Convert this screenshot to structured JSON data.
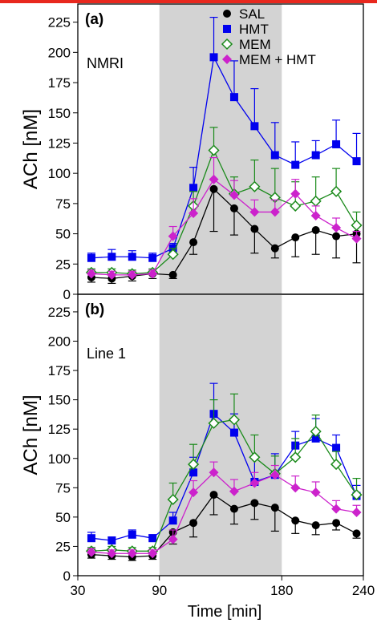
{
  "page": {
    "accent_color": "#e8281e"
  },
  "x_axis": {
    "label": "Time [min]",
    "ticks": [
      30,
      90,
      180,
      240
    ],
    "range": [
      30,
      240
    ]
  },
  "shaded_region": {
    "x_start": 90,
    "x_end": 180,
    "color": "#d3d3d3"
  },
  "chart_data": [
    {
      "type": "line",
      "panel_label": "(a)",
      "annotation": "NMRI",
      "ylabel": "ACh [nM]",
      "ylim": [
        0,
        240
      ],
      "y_ticks": [
        0,
        25,
        50,
        75,
        100,
        125,
        150,
        175,
        200,
        225
      ],
      "legend": {
        "position": "top-right"
      },
      "series": [
        {
          "name": "SAL",
          "color": "#000000",
          "marker": "circle",
          "x": [
            40,
            55,
            70,
            85,
            100,
            115,
            130,
            145,
            160,
            175,
            190,
            205,
            220,
            235
          ],
          "y": [
            14,
            13,
            15,
            17,
            16,
            43,
            87,
            71,
            54,
            38,
            47,
            53,
            48,
            50
          ],
          "err": [
            4,
            4,
            4,
            4,
            3,
            10,
            35,
            22,
            20,
            8,
            16,
            20,
            18,
            24
          ],
          "err_dir": "down"
        },
        {
          "name": "HMT",
          "color": "#0000ee",
          "marker": "square",
          "x": [
            40,
            55,
            70,
            85,
            100,
            115,
            130,
            145,
            160,
            175,
            190,
            205,
            220,
            235
          ],
          "y": [
            30,
            31,
            31,
            30,
            38,
            88,
            196,
            163,
            139,
            115,
            107,
            115,
            124,
            110
          ],
          "err": [
            4,
            6,
            5,
            4,
            4,
            17,
            33,
            30,
            31,
            27,
            19,
            12,
            20,
            23
          ],
          "err_dir": "up"
        },
        {
          "name": "MEM",
          "color": "#1a8a1a",
          "marker": "diamond-open",
          "x": [
            40,
            55,
            70,
            85,
            100,
            115,
            130,
            145,
            160,
            175,
            190,
            205,
            220,
            235
          ],
          "y": [
            18,
            18,
            17,
            18,
            33,
            73,
            119,
            83,
            89,
            80,
            73,
            77,
            85,
            57
          ],
          "err": [
            3,
            3,
            3,
            3,
            5,
            12,
            19,
            14,
            22,
            24,
            20,
            20,
            19,
            11
          ],
          "err_dir": "up"
        },
        {
          "name": "MEM +  HMT",
          "color": "#cc22cc",
          "marker": "diamond",
          "x": [
            40,
            55,
            70,
            85,
            100,
            115,
            130,
            145,
            160,
            175,
            190,
            205,
            220,
            235
          ],
          "y": [
            17,
            16,
            16,
            17,
            48,
            67,
            95,
            82,
            68,
            68,
            83,
            65,
            55,
            46
          ],
          "err": [
            3,
            3,
            3,
            3,
            8,
            12,
            18,
            12,
            10,
            10,
            12,
            8,
            8,
            6
          ],
          "err_dir": "up"
        }
      ]
    },
    {
      "type": "line",
      "panel_label": "(b)",
      "annotation": "Line 1",
      "ylabel": "ACh [nM]",
      "ylim": [
        0,
        240
      ],
      "y_ticks": [
        0,
        25,
        50,
        75,
        100,
        125,
        150,
        175,
        200,
        225
      ],
      "series": [
        {
          "name": "SAL",
          "color": "#000000",
          "marker": "circle",
          "x": [
            40,
            55,
            70,
            85,
            100,
            115,
            130,
            145,
            160,
            175,
            190,
            205,
            220,
            235
          ],
          "y": [
            18,
            17,
            16,
            17,
            37,
            45,
            69,
            57,
            62,
            58,
            47,
            43,
            45,
            36
          ],
          "err": [
            3,
            3,
            3,
            3,
            10,
            12,
            17,
            13,
            14,
            20,
            11,
            8,
            6,
            4
          ],
          "err_dir": "down"
        },
        {
          "name": "HMT",
          "color": "#0000ee",
          "marker": "square",
          "x": [
            40,
            55,
            70,
            85,
            100,
            115,
            130,
            145,
            160,
            175,
            190,
            205,
            220,
            235
          ],
          "y": [
            32,
            30,
            35,
            32,
            47,
            88,
            138,
            122,
            80,
            86,
            111,
            117,
            109,
            68
          ],
          "err": [
            5,
            3,
            4,
            3,
            7,
            13,
            26,
            16,
            20,
            18,
            12,
            17,
            11,
            9
          ],
          "err_dir": "up"
        },
        {
          "name": "MEM",
          "color": "#1a8a1a",
          "marker": "diamond-open",
          "x": [
            40,
            55,
            70,
            85,
            100,
            115,
            130,
            145,
            160,
            175,
            190,
            205,
            220,
            235
          ],
          "y": [
            21,
            22,
            21,
            21,
            65,
            95,
            130,
            133,
            101,
            87,
            101,
            123,
            95,
            69
          ],
          "err": [
            3,
            3,
            3,
            3,
            14,
            17,
            20,
            22,
            19,
            15,
            16,
            14,
            11,
            14
          ],
          "err_dir": "up"
        },
        {
          "name": "MEM +  HMT",
          "color": "#cc22cc",
          "marker": "diamond",
          "x": [
            40,
            55,
            70,
            85,
            100,
            115,
            130,
            145,
            160,
            175,
            190,
            205,
            220,
            235
          ],
          "y": [
            20,
            19,
            19,
            19,
            31,
            71,
            88,
            72,
            79,
            86,
            75,
            71,
            57,
            54
          ],
          "err": [
            3,
            3,
            3,
            3,
            8,
            10,
            9,
            10,
            9,
            8,
            10,
            9,
            7,
            6
          ],
          "err_dir": "up"
        }
      ]
    }
  ]
}
